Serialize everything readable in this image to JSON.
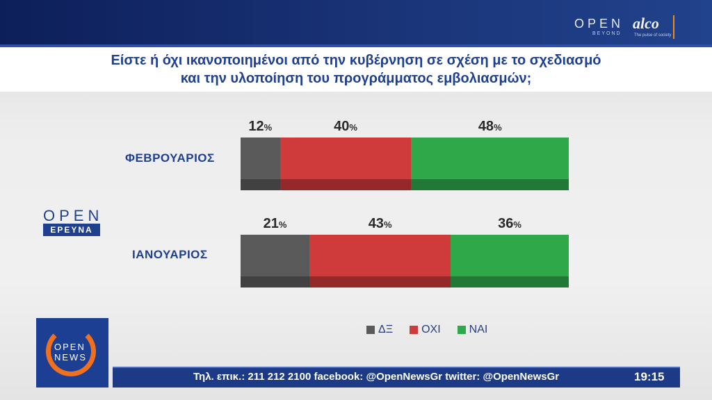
{
  "header": {
    "brand_open": "OPEN",
    "brand_open_sub": "BEYOND",
    "brand_alco": "alco",
    "brand_alco_sub": "The pulse of society"
  },
  "title": {
    "line1": "Είστε ή όχι ικανοποιημένοι από την κυβέρνηση σε σχέση με το σχεδιασμό",
    "line2": "και την υλοποίηση του προγράμματος εμβολιασμών;"
  },
  "left_logo": {
    "open": "OPEN",
    "ereuna": "ΕΡΕΥΝΑ"
  },
  "news_logo": {
    "line1": "OPEN",
    "line2": "NEWS"
  },
  "ticker": {
    "text": "Τηλ. επικ.: 211 212 2100 facebook: @OpenNewsGr twitter: @OpenNewsGr",
    "time": "19:15"
  },
  "colors": {
    "de": "#5a5a5a",
    "oxi": "#cf3a3a",
    "nai": "#2fa84a",
    "accent_blue": "#1f3f8f",
    "accent_orange": "#f0701e"
  },
  "chart_data": {
    "type": "bar",
    "orientation": "horizontal-stacked-100",
    "title": "Είστε ή όχι ικανοποιημένοι από την κυβέρνηση σε σχέση με το σχεδιασμό και την υλοποίηση του προγράμματος εμβολιασμών;",
    "categories": [
      "ΦΕΒΡΟΥΑΡΙΟΣ",
      "ΙΑΝΟΥΑΡΙΟΣ"
    ],
    "series": [
      {
        "name": "ΔΞ",
        "color": "#5a5a5a",
        "values": [
          12,
          21
        ]
      },
      {
        "name": "ΟΧΙ",
        "color": "#cf3a3a",
        "values": [
          40,
          43
        ]
      },
      {
        "name": "ΝΑΙ",
        "color": "#2fa84a",
        "values": [
          48,
          36
        ]
      }
    ],
    "value_suffix": "%",
    "legend_position": "bottom-right",
    "grid": false
  }
}
